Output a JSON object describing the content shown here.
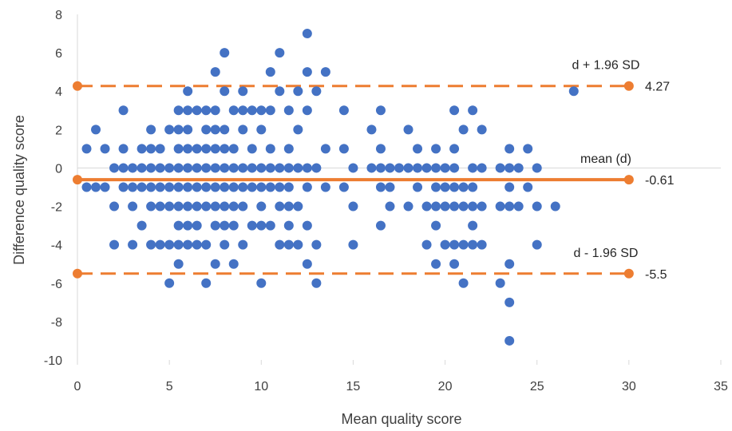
{
  "chart_data": {
    "type": "scatter",
    "title": "",
    "xlabel": "Mean quality score",
    "ylabel": "Difference quality score",
    "xlim": [
      0,
      35
    ],
    "ylim": [
      -10,
      8
    ],
    "x_ticks": [
      "0",
      "5",
      "10",
      "15",
      "20",
      "25",
      "30",
      "35"
    ],
    "y_ticks": [
      "8",
      "6",
      "4",
      "2",
      "0",
      "-2",
      "-4",
      "-6",
      "-8",
      "-10"
    ],
    "grid": false,
    "legend": "none",
    "colors": {
      "points": "#4472C4",
      "lines": "#ED7D31",
      "axis": "#D9D9D9",
      "text": "#404040"
    },
    "series": [
      {
        "points": [
          [
            0.5,
            1
          ],
          [
            0.5,
            -1
          ],
          [
            1,
            2
          ],
          [
            1,
            -1
          ],
          [
            1.5,
            1
          ],
          [
            1.5,
            -1
          ],
          [
            2,
            0
          ],
          [
            2,
            -2
          ],
          [
            2,
            -4
          ],
          [
            2.5,
            3
          ],
          [
            2.5,
            1
          ],
          [
            2.5,
            0
          ],
          [
            2.5,
            -1
          ],
          [
            3,
            0
          ],
          [
            3,
            -1
          ],
          [
            3,
            -2
          ],
          [
            3,
            -4
          ],
          [
            3.5,
            1
          ],
          [
            3.5,
            0
          ],
          [
            3.5,
            -1
          ],
          [
            3.5,
            -3
          ],
          [
            4,
            2
          ],
          [
            4,
            1
          ],
          [
            4,
            0
          ],
          [
            4,
            -1
          ],
          [
            4,
            -2
          ],
          [
            4,
            -4
          ],
          [
            4.5,
            1
          ],
          [
            4.5,
            0
          ],
          [
            4.5,
            -1
          ],
          [
            4.5,
            -2
          ],
          [
            4.5,
            -4
          ],
          [
            5,
            2
          ],
          [
            5,
            0
          ],
          [
            5,
            -1
          ],
          [
            5,
            -2
          ],
          [
            5,
            -4
          ],
          [
            5,
            -6
          ],
          [
            5.5,
            3
          ],
          [
            5.5,
            2
          ],
          [
            5.5,
            1
          ],
          [
            5.5,
            0
          ],
          [
            5.5,
            -1
          ],
          [
            5.5,
            -2
          ],
          [
            5.5,
            -3
          ],
          [
            5.5,
            -4
          ],
          [
            5.5,
            -5
          ],
          [
            6,
            4
          ],
          [
            6,
            3
          ],
          [
            6,
            2
          ],
          [
            6,
            1
          ],
          [
            6,
            0
          ],
          [
            6,
            -1
          ],
          [
            6,
            -2
          ],
          [
            6,
            -3
          ],
          [
            6,
            -4
          ],
          [
            6.5,
            3
          ],
          [
            6.5,
            1
          ],
          [
            6.5,
            0
          ],
          [
            6.5,
            -1
          ],
          [
            6.5,
            -2
          ],
          [
            6.5,
            -3
          ],
          [
            6.5,
            -4
          ],
          [
            7,
            3
          ],
          [
            7,
            2
          ],
          [
            7,
            1
          ],
          [
            7,
            0
          ],
          [
            7,
            -1
          ],
          [
            7,
            -2
          ],
          [
            7,
            -4
          ],
          [
            7,
            -6
          ],
          [
            7.5,
            5
          ],
          [
            7.5,
            3
          ],
          [
            7.5,
            2
          ],
          [
            7.5,
            1
          ],
          [
            7.5,
            0
          ],
          [
            7.5,
            -1
          ],
          [
            7.5,
            -2
          ],
          [
            7.5,
            -3
          ],
          [
            7.5,
            -5
          ],
          [
            8,
            6
          ],
          [
            8,
            4
          ],
          [
            8,
            2
          ],
          [
            8,
            1
          ],
          [
            8,
            0
          ],
          [
            8,
            -1
          ],
          [
            8,
            -2
          ],
          [
            8,
            -3
          ],
          [
            8,
            -4
          ],
          [
            8.5,
            3
          ],
          [
            8.5,
            1
          ],
          [
            8.5,
            0
          ],
          [
            8.5,
            -1
          ],
          [
            8.5,
            -2
          ],
          [
            8.5,
            -3
          ],
          [
            8.5,
            -5
          ],
          [
            9,
            4
          ],
          [
            9,
            2
          ],
          [
            9,
            3
          ],
          [
            9,
            0
          ],
          [
            9,
            -1
          ],
          [
            9,
            -2
          ],
          [
            9,
            -4
          ],
          [
            9.5,
            3
          ],
          [
            9.5,
            1
          ],
          [
            9.5,
            0
          ],
          [
            9.5,
            -1
          ],
          [
            9.5,
            -3
          ],
          [
            10,
            3
          ],
          [
            10,
            2
          ],
          [
            10,
            0
          ],
          [
            10,
            -1
          ],
          [
            10,
            -2
          ],
          [
            10,
            -3
          ],
          [
            10,
            -6
          ],
          [
            10.5,
            5
          ],
          [
            10.5,
            3
          ],
          [
            10.5,
            1
          ],
          [
            10.5,
            0
          ],
          [
            10.5,
            -1
          ],
          [
            10.5,
            -3
          ],
          [
            11,
            6
          ],
          [
            11,
            4
          ],
          [
            11,
            0
          ],
          [
            11,
            -1
          ],
          [
            11,
            -2
          ],
          [
            11,
            -4
          ],
          [
            11.5,
            3
          ],
          [
            11.5,
            1
          ],
          [
            11.5,
            0
          ],
          [
            11.5,
            -1
          ],
          [
            11.5,
            -2
          ],
          [
            11.5,
            -3
          ],
          [
            11.5,
            -4
          ],
          [
            12,
            4
          ],
          [
            12,
            2
          ],
          [
            12,
            0
          ],
          [
            12,
            -2
          ],
          [
            12,
            -4
          ],
          [
            12.5,
            7
          ],
          [
            12.5,
            5
          ],
          [
            12.5,
            3
          ],
          [
            12.5,
            0
          ],
          [
            12.5,
            -1
          ],
          [
            12.5,
            -3
          ],
          [
            12.5,
            -5
          ],
          [
            13,
            4
          ],
          [
            13,
            0
          ],
          [
            13,
            -4
          ],
          [
            13,
            -6
          ],
          [
            13.5,
            5
          ],
          [
            13.5,
            1
          ],
          [
            13.5,
            -1
          ],
          [
            14.5,
            3
          ],
          [
            14.5,
            1
          ],
          [
            14.5,
            -1
          ],
          [
            15,
            0
          ],
          [
            15,
            -2
          ],
          [
            15,
            -4
          ],
          [
            16,
            2
          ],
          [
            16,
            0
          ],
          [
            16.5,
            3
          ],
          [
            16.5,
            1
          ],
          [
            16.5,
            0
          ],
          [
            16.5,
            -1
          ],
          [
            16.5,
            -3
          ],
          [
            17,
            0
          ],
          [
            17,
            -1
          ],
          [
            17,
            -2
          ],
          [
            17.5,
            0
          ],
          [
            18,
            2
          ],
          [
            18,
            0
          ],
          [
            18,
            -2
          ],
          [
            18.5,
            1
          ],
          [
            18.5,
            0
          ],
          [
            18.5,
            -1
          ],
          [
            19,
            0
          ],
          [
            19,
            -2
          ],
          [
            19,
            -4
          ],
          [
            19.5,
            1
          ],
          [
            19.5,
            0
          ],
          [
            19.5,
            -1
          ],
          [
            19.5,
            -2
          ],
          [
            19.5,
            -3
          ],
          [
            19.5,
            -5
          ],
          [
            20,
            0
          ],
          [
            20,
            -1
          ],
          [
            20,
            -2
          ],
          [
            20,
            -4
          ],
          [
            20.5,
            3
          ],
          [
            20.5,
            1
          ],
          [
            20.5,
            0
          ],
          [
            20.5,
            -1
          ],
          [
            20.5,
            -2
          ],
          [
            20.5,
            -4
          ],
          [
            20.5,
            -5
          ],
          [
            21,
            2
          ],
          [
            21,
            -1
          ],
          [
            21,
            -2
          ],
          [
            21,
            -4
          ],
          [
            21,
            -6
          ],
          [
            21.5,
            3
          ],
          [
            21.5,
            0
          ],
          [
            21.5,
            -1
          ],
          [
            21.5,
            -2
          ],
          [
            21.5,
            -3
          ],
          [
            21.5,
            -4
          ],
          [
            22,
            2
          ],
          [
            22,
            0
          ],
          [
            22,
            -2
          ],
          [
            22,
            -4
          ],
          [
            23,
            0
          ],
          [
            23,
            -2
          ],
          [
            23,
            -6
          ],
          [
            23.5,
            1
          ],
          [
            23.5,
            0
          ],
          [
            23.5,
            -1
          ],
          [
            23.5,
            -2
          ],
          [
            23.5,
            -5
          ],
          [
            23.5,
            -7
          ],
          [
            23.5,
            -9
          ],
          [
            24,
            0
          ],
          [
            24,
            -2
          ],
          [
            24.5,
            1
          ],
          [
            24.5,
            -1
          ],
          [
            25,
            0
          ],
          [
            25,
            -2
          ],
          [
            25,
            -4
          ],
          [
            26,
            -2
          ],
          [
            27,
            4
          ]
        ]
      }
    ],
    "reference_lines": [
      {
        "label": "d + 1.96 SD",
        "value": 4.27,
        "value_label": "4.27",
        "style": "dashed"
      },
      {
        "label": "mean (d)",
        "value": -0.61,
        "value_label": "-0.61",
        "style": "solid"
      },
      {
        "label": "d - 1.96 SD",
        "value": -5.5,
        "value_label": "-5.5",
        "style": "dashed"
      }
    ],
    "reference_x_range": [
      0,
      30
    ]
  }
}
